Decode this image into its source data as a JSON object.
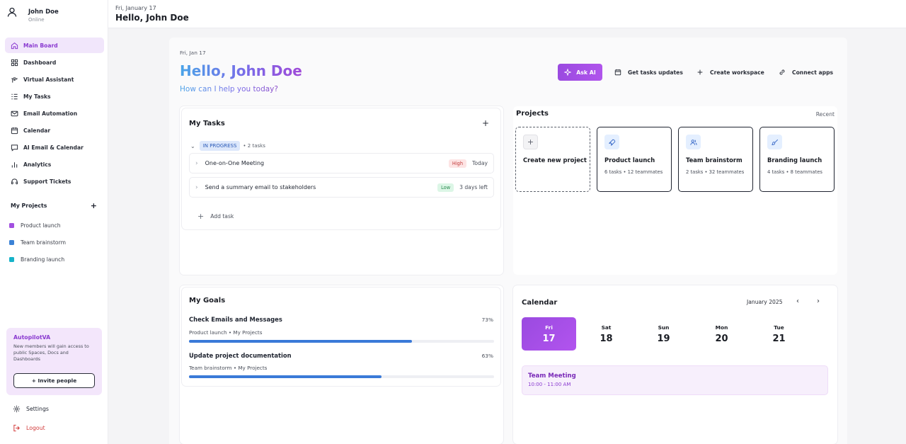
{
  "user": {
    "name": "John Doe",
    "status": "Online"
  },
  "topbar": {
    "date": "Fri, January 17",
    "greeting": "Hello, John Doe"
  },
  "nav": [
    {
      "label": "Main Board",
      "icon": "home-icon",
      "active": true
    },
    {
      "label": "Dashboard",
      "icon": "dashboard-icon"
    },
    {
      "label": "Virtual Assistant",
      "icon": "assistant-icon"
    },
    {
      "label": "My Tasks",
      "icon": "tasks-icon"
    },
    {
      "label": "Email Automation",
      "icon": "mail-icon"
    },
    {
      "label": "Calendar",
      "icon": "calendar-icon"
    },
    {
      "label": "AI Email & Calendar",
      "icon": "chat-icon"
    },
    {
      "label": "Analytics",
      "icon": "analytics-icon"
    },
    {
      "label": "Support Tickets",
      "icon": "headset-icon"
    }
  ],
  "my_projects": {
    "heading": "My Projects",
    "add": "+",
    "items": [
      {
        "label": "Product launch",
        "color": "#a24fe0"
      },
      {
        "label": "Team brainstorm",
        "color": "#3b82d6"
      },
      {
        "label": "Branding launch",
        "color": "#16b3c9"
      }
    ]
  },
  "promo": {
    "title": "AutopilotVA",
    "text": "New members will gain access to public Spaces, Docs and Dashboards",
    "button": "+ Invite people"
  },
  "settings_label": "Settings",
  "logout_label": "Logout",
  "main": {
    "date": "Fri, Jan 17",
    "hello": "Hello, John Doe",
    "subtitle": "How can I help you today?",
    "actions": {
      "ask_ai": "Ask AI",
      "task_updates": "Get tasks updates",
      "create_workspace": "Create workspace",
      "connect_apps": "Connect apps"
    }
  },
  "tasks": {
    "title": "My Tasks",
    "add": "+",
    "status": "IN PROGRESS",
    "count": "• 2 tasks",
    "items": [
      {
        "name": "One-on-One Meeting",
        "priority": "High",
        "due": "Today"
      },
      {
        "name": "Send a summary email to stakeholders",
        "priority": "Low",
        "due": "3 days left"
      }
    ],
    "add_task": "Add task"
  },
  "projects": {
    "title": "Projects",
    "recent": "Recent",
    "create_label": "Create new project",
    "create_icon": "+",
    "items": [
      {
        "name": "Product launch",
        "meta": "6 tasks • 12 teammates",
        "icon": "rocket-icon"
      },
      {
        "name": "Team brainstorm",
        "meta": "2 tasks • 32 teammates",
        "icon": "users-icon"
      },
      {
        "name": "Branding launch",
        "meta": "4 tasks • 8 teammates",
        "icon": "brush-icon"
      }
    ]
  },
  "goals": {
    "title": "My Goals",
    "items": [
      {
        "title": "Check Emails and Messages",
        "meta": "Product launch • My Projects",
        "percent_label": "73%",
        "progress": 0.73
      },
      {
        "title": "Update project documentation",
        "meta": "Team brainstorm • My Projects",
        "percent_label": "63%",
        "progress": 0.63
      }
    ]
  },
  "calendar": {
    "title": "Calendar",
    "month": "January 2025",
    "prev": "‹",
    "next": "›",
    "days": [
      {
        "name": "Fri",
        "num": "17",
        "selected": true
      },
      {
        "name": "Sat",
        "num": "18"
      },
      {
        "name": "Sun",
        "num": "19"
      },
      {
        "name": "Mon",
        "num": "20"
      },
      {
        "name": "Tue",
        "num": "21"
      }
    ],
    "event": {
      "title": "Team Meeting",
      "time": "10:00 - 11:00 AM"
    }
  }
}
